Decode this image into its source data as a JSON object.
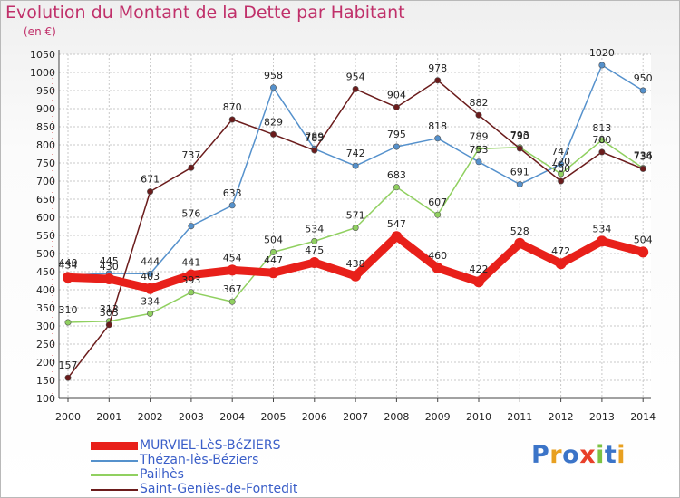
{
  "header": {
    "title": "Evolution du Montant de la Dette par Habitant",
    "subtitle": "(en €)"
  },
  "logo": {
    "letters": [
      "P",
      "r",
      "o",
      "x",
      "i",
      "t",
      "i"
    ],
    "colors": [
      "#3b74c8",
      "#e8a020",
      "#3b74c8",
      "#e8402a",
      "#7cc242",
      "#3b74c8",
      "#e8a020"
    ]
  },
  "chart_data": {
    "type": "line",
    "title": "Evolution du Montant de la Dette par Habitant",
    "subtitle": "(en €)",
    "xlabel": "",
    "ylabel": "",
    "x": [
      2000,
      2001,
      2002,
      2003,
      2004,
      2005,
      2006,
      2007,
      2008,
      2009,
      2010,
      2011,
      2012,
      2013,
      2014
    ],
    "x_tick_labels": [
      "2000",
      "2001",
      "2002",
      "2003",
      "2004",
      "2005",
      "2006",
      "2007",
      "2008",
      "2009",
      "2010",
      "2011",
      "2012",
      "2013",
      "2014"
    ],
    "ylim": [
      100,
      1050
    ],
    "y_ticks": [
      100,
      150,
      200,
      250,
      300,
      350,
      400,
      450,
      500,
      550,
      600,
      650,
      700,
      750,
      800,
      850,
      900,
      950,
      1000,
      1050
    ],
    "grid": true,
    "legend_position": "bottom-left",
    "series": [
      {
        "name": "MURVIEL-LèS-BéZIERS",
        "color": "#e8201a",
        "values": [
          434,
          430,
          403,
          441,
          454,
          447,
          475,
          438,
          547,
          460,
          422,
          528,
          472,
          534,
          504
        ]
      },
      {
        "name": "Thézan-lès-Béziers",
        "color": "#5591cc",
        "values": [
          440,
          445,
          444,
          576,
          633,
          958,
          789,
          742,
          795,
          818,
          753,
          691,
          747,
          1020,
          950
        ]
      },
      {
        "name": "Pailhès",
        "color": "#90d060",
        "values": [
          310,
          313,
          334,
          393,
          367,
          504,
          534,
          571,
          683,
          607,
          789,
          793,
          720,
          813,
          736
        ]
      },
      {
        "name": "Saint-Geniès-de-Fontedit",
        "color": "#6b1c1c",
        "values": [
          157,
          303,
          671,
          737,
          870,
          829,
          785,
          954,
          904,
          978,
          882,
          790,
          700,
          780,
          734
        ]
      }
    ]
  }
}
